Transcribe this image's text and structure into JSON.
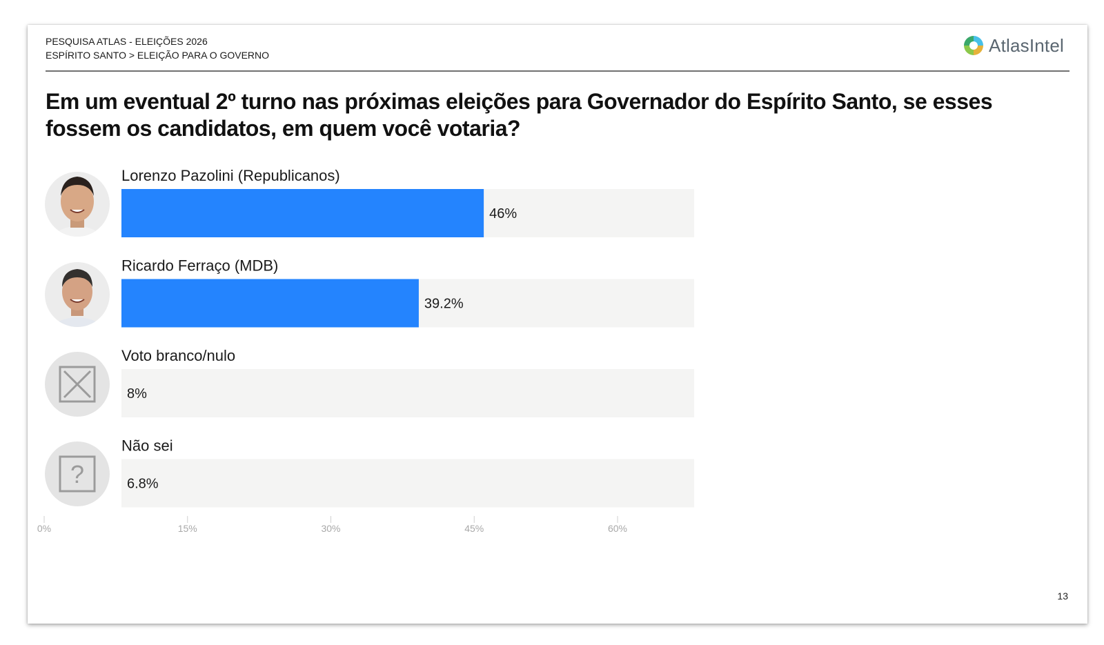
{
  "header": {
    "line1": "PESQUISA ATLAS - ELEIÇÕES 2026",
    "line2": "ESPÍRITO SANTO > ELEIÇÃO PARA O GOVERNO"
  },
  "logo": {
    "text": "AtlasIntel",
    "icon": "atlasintel-logo-icon"
  },
  "question": "Em um eventual 2º turno nas próximas eleições para Governador do Espírito Santo, se esses fossem os candidatos, em quem você votaria?",
  "page_number": "13",
  "colors": {
    "candidate_bar": "#2484fe",
    "blank_null_bar": "#c7bab1",
    "dont_know_bar": "#e3ac41",
    "bar_track": "#f4f4f3",
    "axis_text": "#a8a8a8"
  },
  "chart_data": {
    "type": "bar",
    "orientation": "horizontal",
    "categories": [
      "Lorenzo Pazolini (Republicanos)",
      "Ricardo Ferraço (MDB)",
      "Voto branco/nulo",
      "Não sei"
    ],
    "values": [
      46,
      39.2,
      8,
      6.8
    ],
    "value_labels": [
      "46%",
      "39.2%",
      "8%",
      "6.8%"
    ],
    "bar_colors": [
      "#2484fe",
      "#2484fe",
      "#c7bab1",
      "#e3ac41"
    ],
    "icons": [
      "candidate-photo-pazolini",
      "candidate-photo-ferraco",
      "x-box-icon",
      "question-box-icon"
    ],
    "x_ticks": [
      0,
      15,
      30,
      45,
      60
    ],
    "x_tick_labels": [
      "0%",
      "15%",
      "30%",
      "45%",
      "60%"
    ],
    "xlim": [
      0,
      60
    ],
    "grid": false
  }
}
